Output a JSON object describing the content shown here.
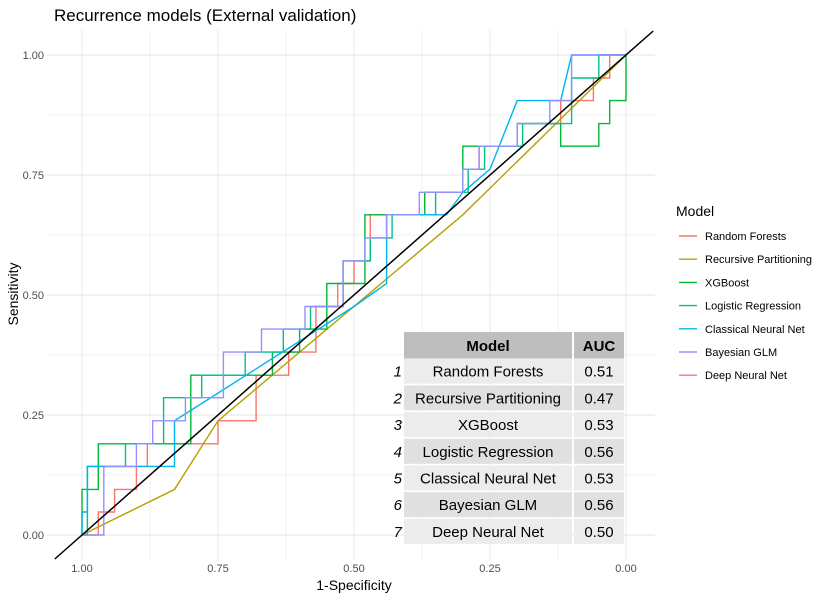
{
  "chart_data": {
    "type": "line",
    "title": "Recurrence models (External validation)",
    "xlabel": "1-Specificity",
    "ylabel": "Sensitivity",
    "x_reversed": true,
    "xlim": [
      1.0,
      0.0
    ],
    "ylim": [
      0.0,
      1.0
    ],
    "x_ticks": [
      1.0,
      0.75,
      0.5,
      0.25,
      0.0
    ],
    "x_tick_labels": [
      "1.00",
      "0.75",
      "0.50",
      "0.25",
      "0.00"
    ],
    "y_ticks": [
      0.0,
      0.25,
      0.5,
      0.75,
      1.0
    ],
    "y_tick_labels": [
      "0.00",
      "0.25",
      "0.50",
      "0.75",
      "1.00"
    ],
    "grid": true,
    "legend": {
      "title": "Model",
      "position": "right"
    },
    "series": [
      {
        "name": "Random Forests",
        "color": "#F8766D",
        "points": [
          [
            1.0,
            0.0
          ],
          [
            0.97,
            0.0
          ],
          [
            0.97,
            0.048
          ],
          [
            0.94,
            0.048
          ],
          [
            0.94,
            0.095
          ],
          [
            0.9,
            0.095
          ],
          [
            0.9,
            0.143
          ],
          [
            0.88,
            0.143
          ],
          [
            0.88,
            0.19
          ],
          [
            0.75,
            0.19
          ],
          [
            0.75,
            0.238
          ],
          [
            0.68,
            0.238
          ],
          [
            0.68,
            0.333
          ],
          [
            0.62,
            0.333
          ],
          [
            0.62,
            0.381
          ],
          [
            0.57,
            0.381
          ],
          [
            0.57,
            0.476
          ],
          [
            0.53,
            0.476
          ],
          [
            0.53,
            0.524
          ],
          [
            0.5,
            0.524
          ],
          [
            0.5,
            0.571
          ],
          [
            0.47,
            0.571
          ],
          [
            0.47,
            0.667
          ],
          [
            0.37,
            0.667
          ],
          [
            0.37,
            0.714
          ],
          [
            0.3,
            0.714
          ],
          [
            0.3,
            0.762
          ],
          [
            0.27,
            0.762
          ],
          [
            0.27,
            0.81
          ],
          [
            0.2,
            0.81
          ],
          [
            0.2,
            0.857
          ],
          [
            0.12,
            0.857
          ],
          [
            0.12,
            0.905
          ],
          [
            0.06,
            0.905
          ],
          [
            0.06,
            0.952
          ],
          [
            0.03,
            0.952
          ],
          [
            0.03,
            1.0
          ],
          [
            0.0,
            1.0
          ]
        ]
      },
      {
        "name": "Recursive Partitioning",
        "color": "#B79F00",
        "points": [
          [
            1.0,
            0.0
          ],
          [
            0.83,
            0.095
          ],
          [
            0.75,
            0.238
          ],
          [
            0.3,
            0.667
          ],
          [
            0.0,
            1.0
          ]
        ]
      },
      {
        "name": "XGBoost",
        "color": "#00BA38",
        "points": [
          [
            1.0,
            0.0
          ],
          [
            1.0,
            0.095
          ],
          [
            0.97,
            0.095
          ],
          [
            0.97,
            0.19
          ],
          [
            0.8,
            0.19
          ],
          [
            0.8,
            0.333
          ],
          [
            0.65,
            0.333
          ],
          [
            0.65,
            0.381
          ],
          [
            0.6,
            0.381
          ],
          [
            0.6,
            0.429
          ],
          [
            0.55,
            0.429
          ],
          [
            0.55,
            0.524
          ],
          [
            0.48,
            0.524
          ],
          [
            0.48,
            0.667
          ],
          [
            0.37,
            0.667
          ],
          [
            0.37,
            0.714
          ],
          [
            0.3,
            0.714
          ],
          [
            0.3,
            0.81
          ],
          [
            0.2,
            0.81
          ],
          [
            0.2,
            0.857
          ],
          [
            0.12,
            0.857
          ],
          [
            0.12,
            0.81
          ],
          [
            0.05,
            0.81
          ],
          [
            0.05,
            0.857
          ],
          [
            0.03,
            0.857
          ],
          [
            0.03,
            0.905
          ],
          [
            0.0,
            0.905
          ],
          [
            0.0,
            1.0
          ]
        ]
      },
      {
        "name": "Logistic Regression",
        "color": "#00C08B",
        "points": [
          [
            1.0,
            0.0
          ],
          [
            0.99,
            0.0
          ],
          [
            0.99,
            0.143
          ],
          [
            0.92,
            0.143
          ],
          [
            0.92,
            0.19
          ],
          [
            0.85,
            0.19
          ],
          [
            0.85,
            0.286
          ],
          [
            0.78,
            0.286
          ],
          [
            0.78,
            0.333
          ],
          [
            0.7,
            0.333
          ],
          [
            0.7,
            0.381
          ],
          [
            0.63,
            0.381
          ],
          [
            0.63,
            0.429
          ],
          [
            0.58,
            0.429
          ],
          [
            0.58,
            0.476
          ],
          [
            0.52,
            0.476
          ],
          [
            0.52,
            0.571
          ],
          [
            0.47,
            0.571
          ],
          [
            0.47,
            0.619
          ],
          [
            0.43,
            0.619
          ],
          [
            0.43,
            0.667
          ],
          [
            0.35,
            0.667
          ],
          [
            0.35,
            0.714
          ],
          [
            0.29,
            0.714
          ],
          [
            0.29,
            0.762
          ],
          [
            0.26,
            0.762
          ],
          [
            0.26,
            0.81
          ],
          [
            0.19,
            0.81
          ],
          [
            0.19,
            0.857
          ],
          [
            0.1,
            0.857
          ],
          [
            0.1,
            0.952
          ],
          [
            0.05,
            0.952
          ],
          [
            0.05,
            1.0
          ],
          [
            0.0,
            1.0
          ]
        ]
      },
      {
        "name": "Classical Neural Net",
        "color": "#00B4F0",
        "points": [
          [
            1.0,
            0.0
          ],
          [
            1.0,
            0.048
          ],
          [
            0.99,
            0.048
          ],
          [
            0.99,
            0.143
          ],
          [
            0.83,
            0.143
          ],
          [
            0.83,
            0.238
          ],
          [
            0.5,
            0.476
          ],
          [
            0.44,
            0.524
          ],
          [
            0.44,
            0.667
          ],
          [
            0.33,
            0.667
          ],
          [
            0.3,
            0.714
          ],
          [
            0.25,
            0.762
          ],
          [
            0.2,
            0.905
          ],
          [
            0.12,
            0.905
          ],
          [
            0.1,
            1.0
          ],
          [
            0.0,
            1.0
          ]
        ]
      },
      {
        "name": "Bayesian GLM",
        "color": "#9590FF",
        "points": [
          [
            1.0,
            0.0
          ],
          [
            0.96,
            0.0
          ],
          [
            0.96,
            0.143
          ],
          [
            0.9,
            0.143
          ],
          [
            0.9,
            0.19
          ],
          [
            0.87,
            0.19
          ],
          [
            0.87,
            0.238
          ],
          [
            0.81,
            0.238
          ],
          [
            0.81,
            0.286
          ],
          [
            0.74,
            0.286
          ],
          [
            0.74,
            0.381
          ],
          [
            0.67,
            0.381
          ],
          [
            0.67,
            0.429
          ],
          [
            0.59,
            0.429
          ],
          [
            0.59,
            0.476
          ],
          [
            0.52,
            0.476
          ],
          [
            0.52,
            0.571
          ],
          [
            0.48,
            0.571
          ],
          [
            0.48,
            0.619
          ],
          [
            0.44,
            0.619
          ],
          [
            0.44,
            0.667
          ],
          [
            0.38,
            0.667
          ],
          [
            0.38,
            0.714
          ],
          [
            0.3,
            0.714
          ],
          [
            0.3,
            0.762
          ],
          [
            0.27,
            0.762
          ],
          [
            0.27,
            0.81
          ],
          [
            0.2,
            0.81
          ],
          [
            0.2,
            0.857
          ],
          [
            0.14,
            0.857
          ],
          [
            0.14,
            0.905
          ],
          [
            0.1,
            0.905
          ],
          [
            0.1,
            1.0
          ],
          [
            0.0,
            1.0
          ]
        ]
      },
      {
        "name": "Deep Neural Net",
        "color": "#FF62BC",
        "points": [
          [
            1.0,
            0.0
          ],
          [
            1.0,
            0.0
          ]
        ]
      }
    ],
    "reference_line": {
      "color": "#000000",
      "points": [
        [
          1.05,
          -0.05
        ],
        [
          -0.05,
          1.05
        ]
      ]
    },
    "auc_table": {
      "headers": [
        "Model",
        "AUC"
      ],
      "rows": [
        {
          "index": "1",
          "model": "Random Forests",
          "auc": "0.51"
        },
        {
          "index": "2",
          "model": "Recursive Partitioning",
          "auc": "0.47"
        },
        {
          "index": "3",
          "model": "XGBoost",
          "auc": "0.53"
        },
        {
          "index": "4",
          "model": "Logistic Regression",
          "auc": "0.56"
        },
        {
          "index": "5",
          "model": "Classical Neural Net",
          "auc": "0.53"
        },
        {
          "index": "6",
          "model": "Bayesian GLM",
          "auc": "0.56"
        },
        {
          "index": "7",
          "model": "Deep Neural Net",
          "auc": "0.50"
        }
      ]
    }
  }
}
